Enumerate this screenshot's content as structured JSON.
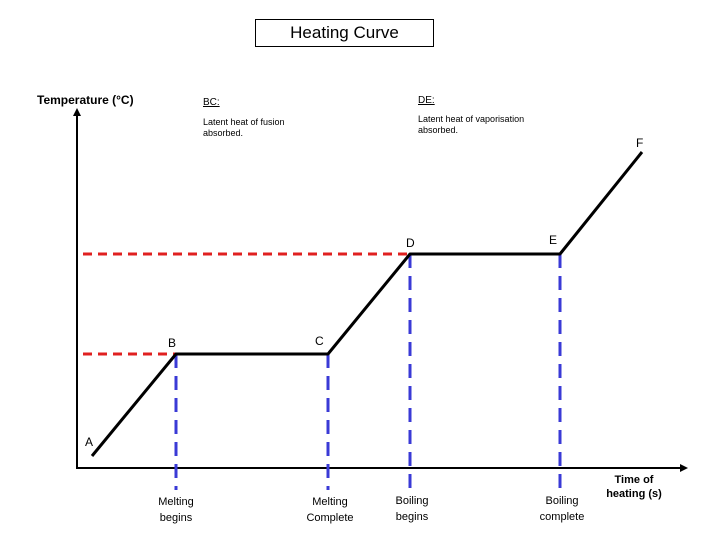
{
  "title": "Heating Curve",
  "y_axis_label": "Temperature (°C)",
  "x_axis_label_line1": "Time of",
  "x_axis_label_line2": "heating (s)",
  "notes": {
    "bc_heading": "BC:",
    "bc_text": "Latent heat of fusion absorbed.",
    "de_heading": "DE:",
    "de_text": "Latent heat of vaporisation absorbed."
  },
  "points": [
    "A",
    "B",
    "C",
    "D",
    "E",
    "F"
  ],
  "markers": [
    {
      "line1": "Melting",
      "line2": "begins"
    },
    {
      "line1": "Melting",
      "line2": "Complete"
    },
    {
      "line1": "Boiling",
      "line2": "begins"
    },
    {
      "line1": "Boiling",
      "line2": "complete"
    }
  ],
  "colors": {
    "curve": "#000000",
    "temperature_guides": "#e02020",
    "time_guides": "#3a3ad6"
  }
}
